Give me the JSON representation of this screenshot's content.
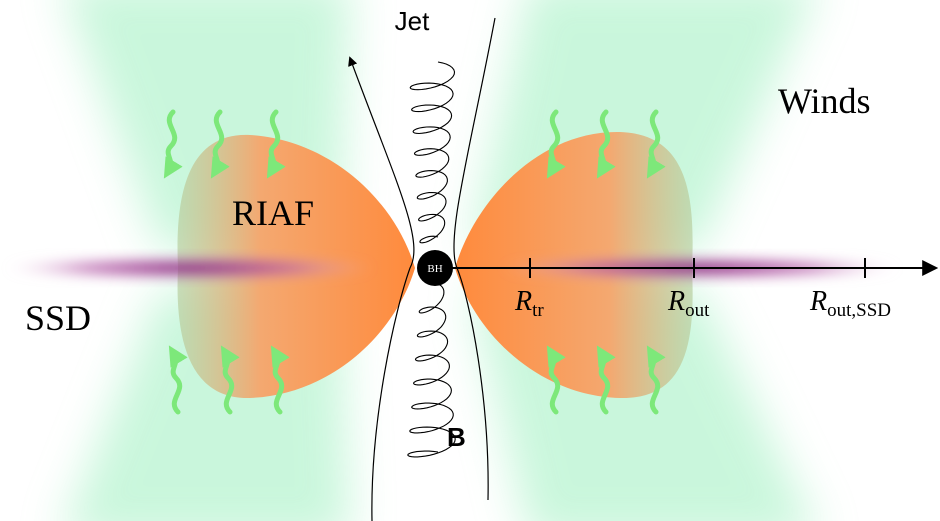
{
  "labels": {
    "jet": "Jet",
    "winds": "Winds",
    "riaf": "RIAF",
    "ssd": "SSD",
    "bh": "BH",
    "magnetic_field": "B"
  },
  "radii": [
    {
      "symbol": "R",
      "subscript": "tr"
    },
    {
      "symbol": "R",
      "subscript": "out"
    },
    {
      "symbol": "R",
      "subscript": "out,SSD"
    }
  ]
}
